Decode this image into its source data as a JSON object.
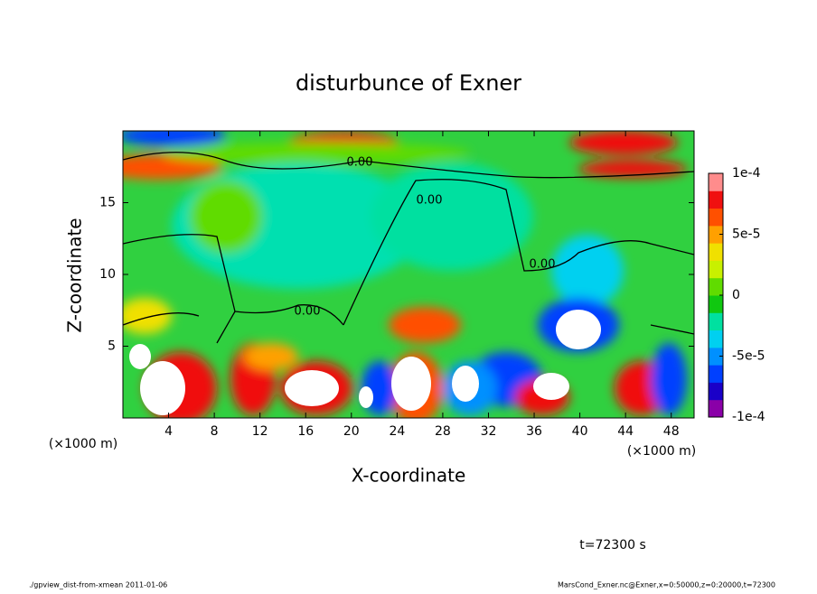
{
  "chart_data": {
    "type": "contour",
    "title": "disturbunce of Exner",
    "xlabel": "X-coordinate",
    "ylabel": "Z-coordinate",
    "x_unit_label": "(×1000 m)",
    "xlim": [
      0,
      50
    ],
    "xticks": [
      4,
      8,
      12,
      16,
      20,
      24,
      28,
      32,
      36,
      40,
      44,
      48
    ],
    "ylim": [
      0,
      20
    ],
    "yticks": [
      5,
      10,
      15
    ],
    "clim": [
      -0.0001,
      0.0001
    ],
    "cticks": [
      {
        "value": 0.0001,
        "label": "1e-4"
      },
      {
        "value": 5e-05,
        "label": "5e-5"
      },
      0,
      {
        "value": -5e-05,
        "label": "-5e-5"
      },
      {
        "value": -0.0001,
        "label": "-1e-4"
      }
    ],
    "colorscale": [
      "#8a00a8",
      "#1a00c8",
      "#0040ff",
      "#0090ff",
      "#00d0f0",
      "#00e0a0",
      "#10c810",
      "#60dc00",
      "#c8f000",
      "#f0e000",
      "#ffa000",
      "#ff5000",
      "#f01010",
      "#ff8c8c"
    ],
    "contour_labels": [
      "0.00",
      "0.00",
      "0.00",
      "0.00"
    ],
    "time_label": "t=72300 s",
    "footer_left": "./gpview_dist-from-xmean  2011-01-06",
    "footer_right": "MarsCond_Exner.nc@Exner,x=0:50000,z=0:20000,t=72300"
  }
}
